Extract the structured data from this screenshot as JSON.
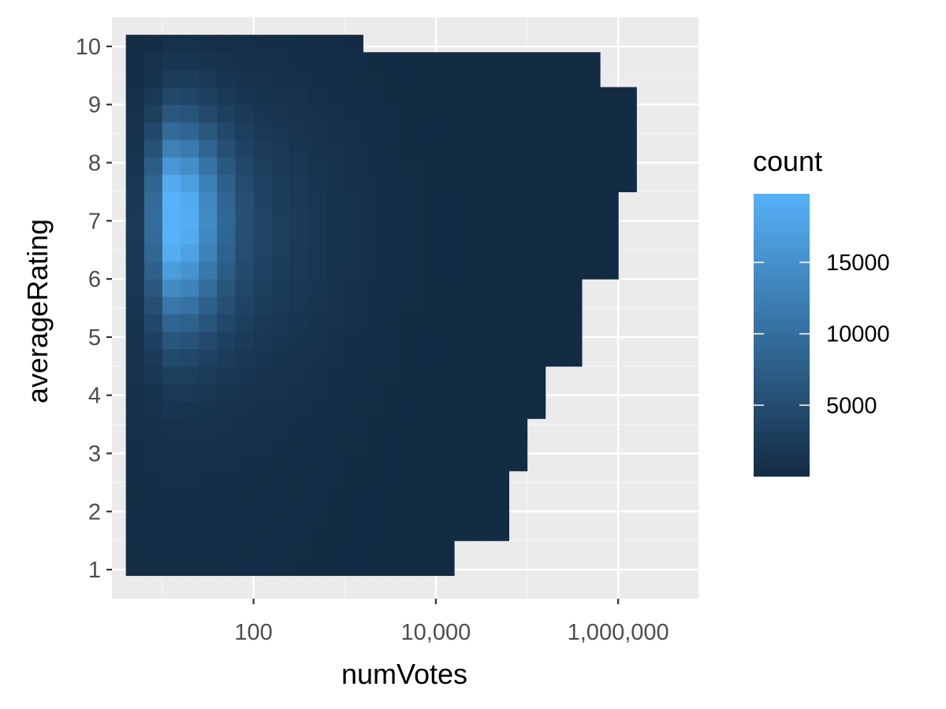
{
  "chart_data": {
    "type": "heatmap",
    "xlabel": "numVotes",
    "ylabel": "averageRating",
    "x_scale": "log10",
    "x_ticks": [
      {
        "value": 100,
        "label": "100"
      },
      {
        "value": 10000,
        "label": "10,000"
      },
      {
        "value": 1000000,
        "label": "1,000,000"
      }
    ],
    "y_ticks": [
      {
        "value": 1,
        "label": "1"
      },
      {
        "value": 2,
        "label": "2"
      },
      {
        "value": 3,
        "label": "3"
      },
      {
        "value": 4,
        "label": "4"
      },
      {
        "value": 5,
        "label": "5"
      },
      {
        "value": 6,
        "label": "6"
      },
      {
        "value": 7,
        "label": "7"
      },
      {
        "value": 8,
        "label": "8"
      },
      {
        "value": 9,
        "label": "9"
      },
      {
        "value": 10,
        "label": "10"
      }
    ],
    "xlim": [
      2.8,
      7600000
    ],
    "ylim": [
      0.5,
      10.5
    ],
    "grid": true,
    "bins": {
      "x_edges_log10": [
        0.6,
        0.8,
        1.0,
        1.2,
        1.4,
        1.6,
        1.8,
        2.0,
        2.2,
        2.4,
        2.6,
        2.8,
        3.0,
        3.2,
        3.4,
        3.6,
        3.8,
        4.0,
        4.2,
        4.4,
        4.6,
        4.8,
        5.0,
        5.2,
        5.4,
        5.6,
        5.8,
        6.0,
        6.2,
        6.4,
        6.6
      ],
      "y_edges": [
        0.9,
        1.2,
        1.5,
        1.8,
        2.1,
        2.4,
        2.7,
        3.0,
        3.3,
        3.6,
        3.9,
        4.2,
        4.5,
        4.8,
        5.1,
        5.4,
        5.7,
        6.0,
        6.3,
        6.6,
        6.9,
        7.2,
        7.5,
        7.8,
        8.1,
        8.4,
        8.7,
        9.0,
        9.3,
        9.6,
        9.9,
        10.2
      ],
      "peak": {
        "x_log10": 1.1,
        "y": 7.1,
        "count": 19000
      }
    },
    "legend": {
      "title": "count",
      "position": "right",
      "ticks": [
        {
          "value": 5000,
          "label": "5000"
        },
        {
          "value": 10000,
          "label": "10000"
        },
        {
          "value": 15000,
          "label": "15000"
        }
      ],
      "range": [
        1,
        19800
      ],
      "color_low": "#132B43",
      "color_high": "#56B1F7"
    },
    "colors": {
      "panel_background": "#EBEBEB",
      "grid_major": "#FFFFFF",
      "grid_minor": "#F5F5F5"
    }
  }
}
